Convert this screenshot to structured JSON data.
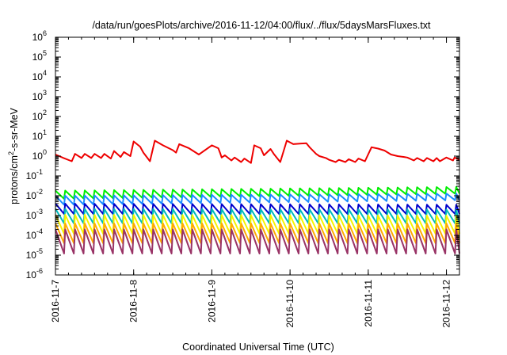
{
  "chart_data": {
    "type": "line",
    "title": "/data/run/goesPlots/archive/2016-11-12/04:00/flux/../flux/5daysMarsFluxes.txt",
    "xlabel": "Coordinated Universal Time (UTC)",
    "ylabel_parts": [
      "protons/cm",
      "2",
      "-s-sr-MeV"
    ],
    "y_scale": "log",
    "ylim": [
      1e-06,
      1000000.0
    ],
    "y_ticks": [
      {
        "exp": -6,
        "label": "10",
        "sup": "-6"
      },
      {
        "exp": -5,
        "label": "10",
        "sup": "-5"
      },
      {
        "exp": -4,
        "label": "10",
        "sup": "-4"
      },
      {
        "exp": -3,
        "label": "10",
        "sup": "-3"
      },
      {
        "exp": -2,
        "label": "10",
        "sup": "-2"
      },
      {
        "exp": -1,
        "label": "10",
        "sup": "-1"
      },
      {
        "exp": 0,
        "label": "10",
        "sup": "0"
      },
      {
        "exp": 1,
        "label": "10",
        "sup": "1"
      },
      {
        "exp": 2,
        "label": "10",
        "sup": "2"
      },
      {
        "exp": 3,
        "label": "10",
        "sup": "3"
      },
      {
        "exp": 4,
        "label": "10",
        "sup": "4"
      },
      {
        "exp": 5,
        "label": "10",
        "sup": "5"
      },
      {
        "exp": 6,
        "label": "10",
        "sup": "6"
      }
    ],
    "x_range_days": [
      "2016-11-07T00:00",
      "2016-11-12T04:00"
    ],
    "x_ticks": [
      "2016-11-7",
      "2016-11-8",
      "2016-11-9",
      "2016-11-10",
      "2016-11-11",
      "2016-11-12"
    ],
    "grid": false,
    "legend": "none",
    "series": [
      {
        "color": "#ee0000",
        "x": [
          "2016-11-07T00:00",
          "2016-11-07T02:30",
          "2016-11-07T05:00",
          "2016-11-07T06:00",
          "2016-11-07T08:00",
          "2016-11-07T09:00",
          "2016-11-07T11:00",
          "2016-11-07T12:00",
          "2016-11-07T14:00",
          "2016-11-07T15:00",
          "2016-11-07T17:00",
          "2016-11-07T18:00",
          "2016-11-07T20:00",
          "2016-11-07T21:00",
          "2016-11-07T23:00",
          "2016-11-08T00:00",
          "2016-11-08T02:00",
          "2016-11-08T03:00",
          "2016-11-08T05:00",
          "2016-11-08T06:30",
          "2016-11-08T09:00",
          "2016-11-08T12:00",
          "2016-11-08T13:00",
          "2016-11-08T14:00",
          "2016-11-08T17:00",
          "2016-11-08T20:00",
          "2016-11-09T00:00",
          "2016-11-09T02:00",
          "2016-11-09T02:30",
          "2016-11-09T03:00",
          "2016-11-09T04:00",
          "2016-11-09T06:00",
          "2016-11-09T07:00",
          "2016-11-09T09:00",
          "2016-11-09T10:00",
          "2016-11-09T12:00",
          "2016-11-09T13:00",
          "2016-11-09T15:00",
          "2016-11-09T16:00",
          "2016-11-09T18:00",
          "2016-11-09T19:00",
          "2016-11-09T21:00",
          "2016-11-09T23:00",
          "2016-11-10T01:00",
          "2016-11-10T05:00",
          "2016-11-10T06:00",
          "2016-11-10T08:00",
          "2016-11-10T09:00",
          "2016-11-10T11:00",
          "2016-11-10T12:00",
          "2016-11-10T14:00",
          "2016-11-10T15:00",
          "2016-11-10T17:00",
          "2016-11-10T18:00",
          "2016-11-10T20:00",
          "2016-11-10T21:00",
          "2016-11-10T23:00",
          "2016-11-11T01:00",
          "2016-11-11T03:00",
          "2016-11-11T05:00",
          "2016-11-11T07:00",
          "2016-11-11T09:00",
          "2016-11-11T11:00",
          "2016-11-11T12:00",
          "2016-11-11T14:00",
          "2016-11-11T15:00",
          "2016-11-11T17:00",
          "2016-11-11T18:00",
          "2016-11-11T20:00",
          "2016-11-11T21:00",
          "2016-11-11T22:00",
          "2016-11-12T00:00",
          "2016-11-12T02:00",
          "2016-11-12T02:30",
          "2016-11-12T04:00"
        ],
        "y": [
          1.2,
          0.8,
          0.55,
          1.3,
          0.8,
          1.3,
          0.8,
          1.3,
          0.8,
          1.3,
          0.75,
          1.8,
          0.9,
          1.6,
          1.0,
          5.5,
          3.0,
          1.5,
          0.55,
          6.0,
          3.5,
          2.0,
          1.5,
          4.0,
          2.5,
          1.2,
          3.5,
          2.5,
          1.5,
          0.85,
          1.1,
          0.6,
          0.85,
          0.5,
          0.75,
          0.45,
          3.5,
          2.5,
          1.1,
          2.3,
          1.3,
          0.5,
          6.0,
          4.0,
          4.5,
          2.8,
          1.3,
          1.0,
          0.8,
          0.65,
          0.5,
          0.65,
          0.5,
          0.7,
          0.5,
          0.75,
          0.55,
          2.8,
          2.4,
          1.9,
          1.2,
          1.0,
          0.9,
          0.85,
          0.6,
          0.8,
          0.55,
          0.8,
          0.55,
          0.8,
          0.55,
          0.85,
          0.6,
          0.85,
          0.65
        ]
      },
      {
        "color": "#00ee00",
        "sawtooth": true,
        "pattern_hours": 3,
        "start": "2016-11-07T00:00",
        "end": "2016-11-12T04:00",
        "peak_start": 0.018,
        "peak_end": 0.028,
        "trough_start": 0.007,
        "trough_end": 0.013
      },
      {
        "color": "#1a8cff",
        "sawtooth": true,
        "pattern_hours": 3,
        "start": "2016-11-07T00:00",
        "end": "2016-11-12T04:00",
        "peak_start": 0.01,
        "peak_end": 0.013,
        "trough_start": 0.0035,
        "trough_end": 0.006
      },
      {
        "color": "#0000cc",
        "sawtooth": true,
        "pattern_hours": 3,
        "start": "2016-11-07T00:00",
        "end": "2016-11-12T04:00",
        "peak_start": 0.004,
        "peak_end": 0.0035,
        "trough_start": 0.0012,
        "trough_end": 0.0012
      },
      {
        "color": "#00bbbb",
        "sawtooth": true,
        "pattern_hours": 3,
        "start": "2016-11-07T00:00",
        "end": "2016-11-12T04:00",
        "peak_start": 0.0022,
        "peak_end": 0.002,
        "trough_start": 0.0004,
        "trough_end": 0.0004
      },
      {
        "color": "#f5f500",
        "sawtooth": true,
        "pattern_hours": 3,
        "start": "2016-11-07T00:00",
        "end": "2016-11-12T04:00",
        "peak_start": 0.0011,
        "peak_end": 0.001,
        "trough_start": 0.00012,
        "trough_end": 0.00012
      },
      {
        "color": "#ffaa00",
        "sawtooth": true,
        "pattern_hours": 3,
        "start": "2016-11-07T00:00",
        "end": "2016-11-12T04:00",
        "peak_start": 0.0004,
        "peak_end": 0.0004,
        "trough_start": 4e-05,
        "trough_end": 4e-05
      },
      {
        "color": "#993366",
        "sawtooth": true,
        "pattern_hours": 3,
        "start": "2016-11-07T00:00",
        "end": "2016-11-12T04:00",
        "peak_start": 0.0002,
        "peak_end": 0.0002,
        "trough_start": 1.2e-05,
        "trough_end": 1.2e-05
      }
    ]
  }
}
